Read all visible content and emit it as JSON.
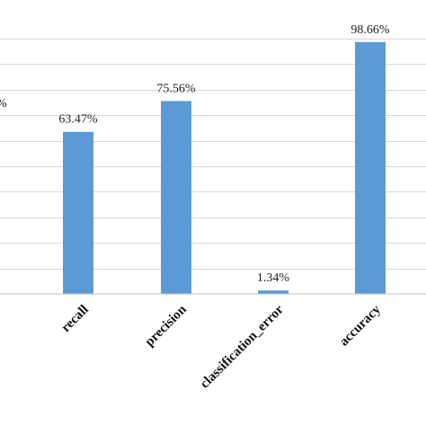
{
  "chart_data": {
    "type": "bar",
    "categories": [
      "recall",
      "precision",
      "classification_error",
      "accuracy"
    ],
    "values": [
      63.47,
      75.56,
      1.34,
      98.66
    ],
    "value_labels": [
      "63.47%",
      "75.56%",
      "1.34%",
      "98.66%"
    ],
    "ylim": [
      0,
      100
    ],
    "grid": true,
    "bar_color": "#5b9bd5",
    "grid_color": "#d9d9d9",
    "partial_tick_label": "%"
  }
}
